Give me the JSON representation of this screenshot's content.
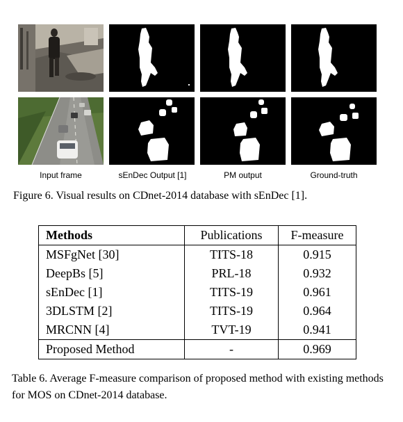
{
  "figure": {
    "column_labels": [
      "Input frame",
      "sEnDec Output [1]",
      "PM output",
      "Ground-truth"
    ],
    "caption": "Figure 6. Visual results on CDnet-2014 database with sEnDec [1]."
  },
  "table": {
    "headers": [
      "Methods",
      "Publications",
      "F-measure"
    ],
    "rows": [
      {
        "method": "MSFgNet [30]",
        "publication": "TITS-18",
        "fmeasure": "0.915"
      },
      {
        "method": "DeepBs [5]",
        "publication": "PRL-18",
        "fmeasure": "0.932"
      },
      {
        "method": "sEnDec [1]",
        "publication": "TITS-19",
        "fmeasure": "0.961"
      },
      {
        "method": "3DLSTM [2]",
        "publication": "TITS-19",
        "fmeasure": "0.964"
      },
      {
        "method": "MRCNN [4]",
        "publication": "TVT-19",
        "fmeasure": "0.941"
      },
      {
        "method": "Proposed Method",
        "publication": "-",
        "fmeasure": "0.969"
      }
    ],
    "caption": "Table 6. Average F-measure comparison of proposed method with existing methods for MOS on CDnet-2014 database."
  }
}
